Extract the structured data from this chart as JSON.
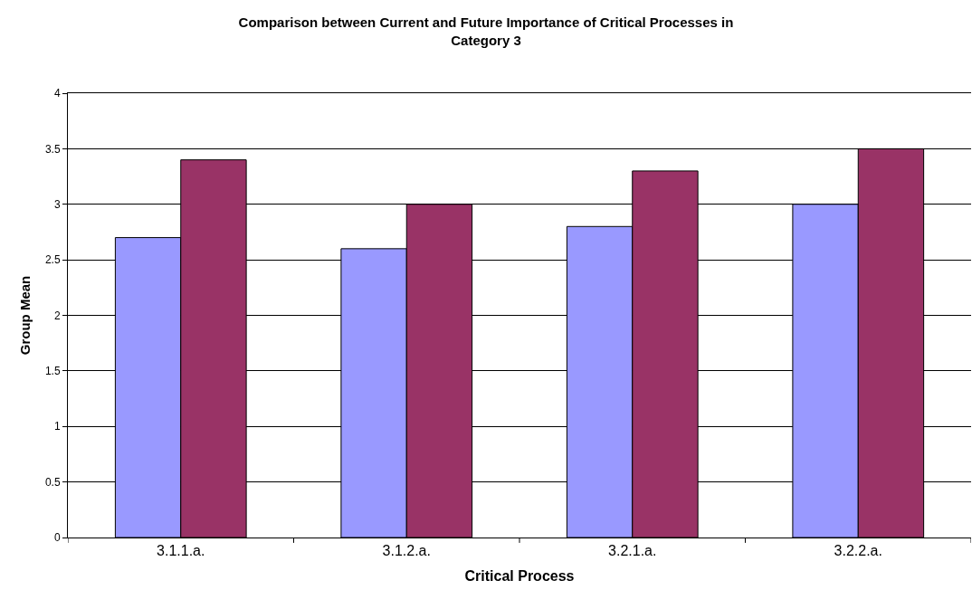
{
  "chart_data": {
    "type": "bar",
    "title": "Comparison between Current and Future Importance of Critical Processes in\nCategory 3",
    "xlabel": "Critical Process",
    "ylabel": "Group Mean",
    "categories": [
      "3.1.1.a.",
      "3.1.2.a.",
      "3.2.1.a.",
      "3.2.2.a."
    ],
    "series": [
      {
        "color": "#9999ff",
        "values": [
          2.7,
          2.6,
          2.8,
          3.0
        ]
      },
      {
        "color": "#993366",
        "values": [
          3.4,
          3.0,
          3.3,
          3.5
        ]
      }
    ],
    "ylim": [
      0,
      4
    ],
    "yticks": [
      0,
      0.5,
      1,
      1.5,
      2,
      2.5,
      3,
      3.5,
      4
    ],
    "grid": "y"
  }
}
